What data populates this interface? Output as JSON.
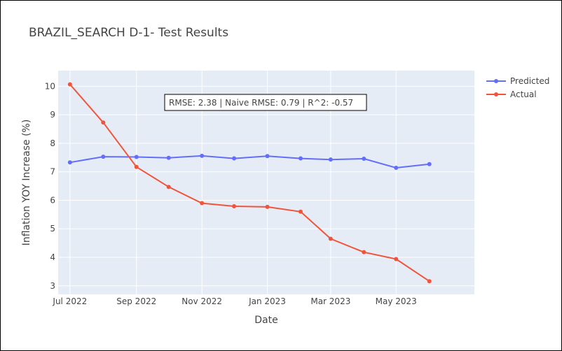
{
  "chart_data": {
    "type": "line",
    "title": "BRAZIL_SEARCH D-1- Test Results",
    "xlabel": "Date",
    "ylabel": "Inflation YOY Increase (%)",
    "x": [
      "2022-07",
      "2022-08",
      "2022-09",
      "2022-10",
      "2022-11",
      "2022-12",
      "2023-01",
      "2023-02",
      "2023-03",
      "2023-04",
      "2023-05",
      "2023-06"
    ],
    "x_tick_labels": [
      {
        "x": "2022-07",
        "label": "Jul 2022"
      },
      {
        "x": "2022-09",
        "label": "Sep 2022"
      },
      {
        "x": "2022-11",
        "label": "Nov 2022"
      },
      {
        "x": "2023-01",
        "label": "Jan 2023"
      },
      {
        "x": "2023-03",
        "label": "Mar 2023"
      },
      {
        "x": "2023-05",
        "label": "May 2023"
      }
    ],
    "xlim": [
      "2022-06-20",
      "2023-07-13"
    ],
    "ylim": [
      2.7,
      10.55
    ],
    "y_ticks": [
      3,
      4,
      5,
      6,
      7,
      8,
      9,
      10
    ],
    "grid": true,
    "legend_position": "top-right",
    "series": [
      {
        "name": "Predicted",
        "color": "#636efa",
        "values": [
          7.33,
          7.53,
          7.52,
          7.49,
          7.56,
          7.47,
          7.55,
          7.47,
          7.43,
          7.46,
          7.14,
          7.27
        ]
      },
      {
        "name": "Actual",
        "color": "#ef553b",
        "values": [
          10.07,
          8.73,
          7.17,
          6.47,
          5.9,
          5.79,
          5.77,
          5.6,
          4.65,
          4.18,
          3.94,
          3.16
        ]
      }
    ],
    "annotation": "RMSE: 2.38 | Naive RMSE: 0.79 | R^2: -0.57"
  }
}
